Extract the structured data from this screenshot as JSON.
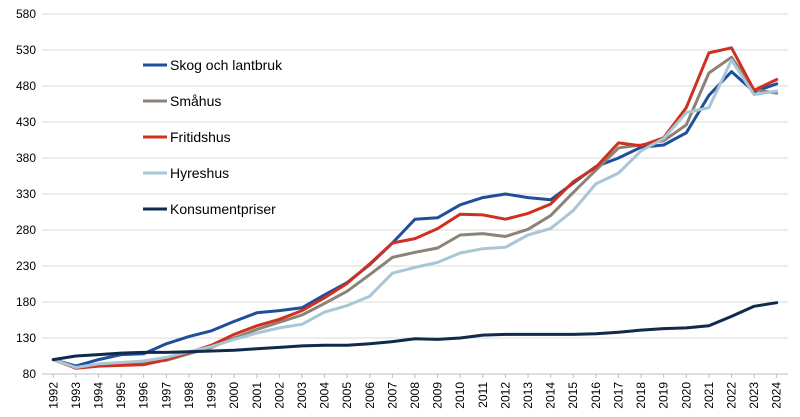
{
  "chart_data": {
    "type": "line",
    "title": "",
    "xlabel": "",
    "ylabel": "",
    "ylim": [
      80,
      580
    ],
    "yticks": [
      80,
      130,
      180,
      230,
      280,
      330,
      380,
      430,
      480,
      530,
      580
    ],
    "grid": "horizontal",
    "legend_position": "inside-top-left",
    "x": [
      "1992",
      "1993",
      "1994",
      "1995",
      "1996",
      "1997",
      "1998",
      "1999",
      "2000",
      "2001",
      "2002",
      "2003",
      "2004",
      "2005",
      "2006",
      "2007",
      "2008",
      "2009",
      "2010",
      "2011",
      "2012",
      "2013",
      "2014",
      "2015",
      "2016",
      "2017",
      "2018",
      "2019",
      "2020",
      "2021",
      "2022",
      "2023",
      "2024"
    ],
    "series": [
      {
        "name": "Skog och lantbruk",
        "color": "#1f4e9b",
        "values": [
          100,
          91,
          100,
          107,
          108,
          122,
          132,
          140,
          153,
          165,
          168,
          172,
          190,
          207,
          232,
          262,
          295,
          297,
          315,
          325,
          330,
          325,
          322,
          345,
          368,
          380,
          395,
          398,
          415,
          467,
          500,
          472,
          483
        ]
      },
      {
        "name": "Småhus",
        "color": "#8c8377",
        "values": [
          100,
          89,
          93,
          93,
          95,
          99,
          108,
          117,
          130,
          142,
          152,
          162,
          178,
          195,
          218,
          242,
          249,
          255,
          273,
          275,
          271,
          281,
          300,
          332,
          363,
          394,
          398,
          404,
          426,
          498,
          520,
          475,
          470
        ]
      },
      {
        "name": "Fritidshus",
        "color": "#d0301f",
        "values": [
          100,
          88,
          91,
          92,
          93,
          100,
          110,
          120,
          135,
          147,
          156,
          168,
          186,
          206,
          233,
          262,
          268,
          282,
          302,
          301,
          295,
          303,
          316,
          347,
          367,
          401,
          397,
          408,
          450,
          526,
          533,
          474,
          489
        ]
      },
      {
        "name": "Hyreshus",
        "color": "#a9c6d6",
        "values": [
          100,
          89,
          94,
          96,
          98,
          103,
          111,
          118,
          128,
          137,
          144,
          149,
          166,
          175,
          188,
          220,
          228,
          235,
          248,
          254,
          256,
          273,
          282,
          307,
          344,
          359,
          390,
          407,
          443,
          450,
          516,
          468,
          473
        ]
      },
      {
        "name": "Konsumentpriser",
        "color": "#0f2a4a",
        "values": [
          100,
          105,
          107,
          109,
          110,
          110,
          111,
          112,
          113,
          115,
          117,
          119,
          120,
          120,
          122,
          125,
          129,
          128,
          130,
          134,
          135,
          135,
          135,
          135,
          136,
          138,
          141,
          143,
          144,
          147,
          160,
          174,
          179
        ]
      }
    ]
  }
}
